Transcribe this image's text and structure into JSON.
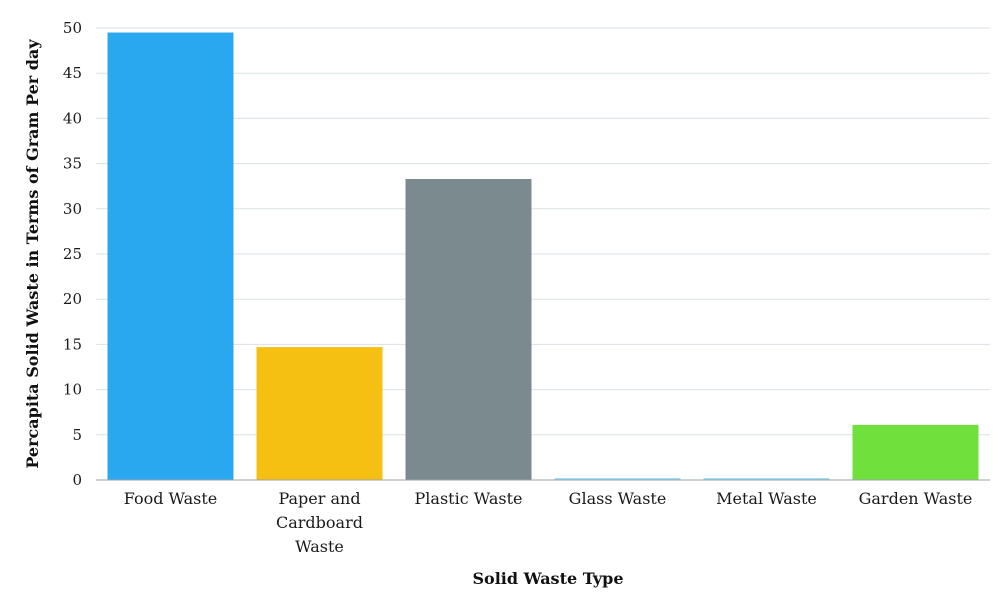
{
  "chart_data": {
    "type": "bar",
    "title": "",
    "xlabel": "Solid Waste Type",
    "ylabel": "Percapita Solid Waste in Terms of Gram Per day",
    "categories": [
      [
        "Food Waste"
      ],
      [
        "Paper and",
        "Cardboard",
        "Waste"
      ],
      [
        "Plastic Waste"
      ],
      [
        "Glass Waste"
      ],
      [
        "Metal Waste"
      ],
      [
        "Garden Waste"
      ]
    ],
    "values": [
      49.5,
      14.7,
      33.3,
      0.2,
      0.2,
      6.1
    ],
    "colors": [
      "#29a8ef",
      "#f5c012",
      "#7b8a8f",
      "#8fd3f0",
      "#8fd3f0",
      "#6fe03c"
    ],
    "ylim": [
      0,
      50
    ],
    "yticks": [
      0,
      5,
      10,
      15,
      20,
      25,
      30,
      35,
      40,
      45,
      50
    ],
    "grid": true,
    "legend": "none"
  }
}
